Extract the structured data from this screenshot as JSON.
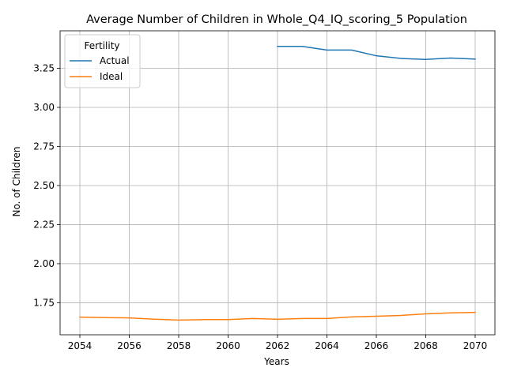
{
  "chart_data": {
    "type": "line",
    "title": "Average Number of Children in Whole_Q4_IQ_scoring_5 Population",
    "xlabel": "Years",
    "ylabel": "No. of Children",
    "xlim": [
      2053.2,
      2070.8
    ],
    "ylim": [
      1.545,
      3.49
    ],
    "x_ticks": [
      2054,
      2056,
      2058,
      2060,
      2062,
      2064,
      2066,
      2068,
      2070
    ],
    "y_ticks": [
      1.75,
      2.0,
      2.25,
      2.5,
      2.75,
      3.0,
      3.25
    ],
    "x_tick_labels": [
      "2054",
      "2056",
      "2058",
      "2060",
      "2062",
      "2064",
      "2066",
      "2068",
      "2070"
    ],
    "y_tick_labels": [
      "1.75",
      "2.00",
      "2.25",
      "2.50",
      "2.75",
      "3.00",
      "3.25"
    ],
    "grid": true,
    "legend": {
      "title": "Fertility",
      "placement": "top-left"
    },
    "series": [
      {
        "name": "Actual",
        "color": "#1f77b4",
        "x": [
          2062,
          2063,
          2064,
          2065,
          2066,
          2067,
          2068,
          2069,
          2070
        ],
        "values": [
          3.39,
          3.39,
          3.367,
          3.367,
          3.33,
          3.313,
          3.307,
          3.316,
          3.309
        ]
      },
      {
        "name": "Ideal",
        "color": "#ff7f0e",
        "x": [
          2054,
          2055,
          2056,
          2057,
          2058,
          2059,
          2060,
          2061,
          2062,
          2063,
          2064,
          2065,
          2066,
          2067,
          2068,
          2069,
          2070
        ],
        "values": [
          1.658,
          1.655,
          1.653,
          1.645,
          1.639,
          1.642,
          1.642,
          1.649,
          1.644,
          1.649,
          1.649,
          1.659,
          1.664,
          1.669,
          1.679,
          1.685,
          1.688
        ]
      }
    ]
  }
}
